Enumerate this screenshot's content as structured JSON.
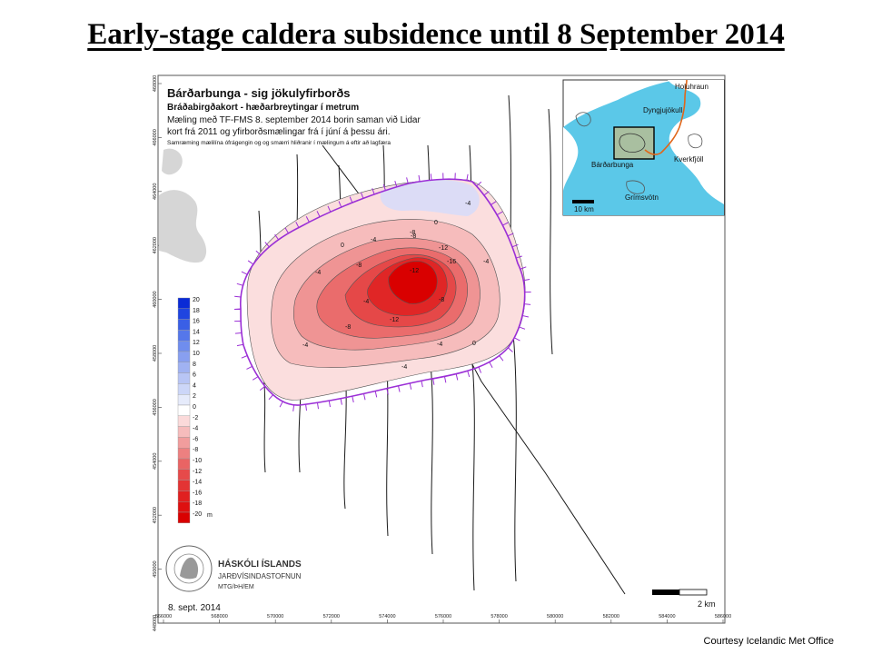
{
  "slide": {
    "title": "Early-stage caldera subsidence until 8 September 2014",
    "credit": "Courtesy Icelandic Met Office"
  },
  "map": {
    "title": "Bárðarbunga - sig jökulyfirborðs",
    "subtitle": "Bráðabirgðakort - hæðarbreytingar í metrum",
    "description_lines": [
      "Mæling með TF-FMS 8. september 2014 borin saman við Lidar",
      "kort frá 2011 og yfirborðsmælingar frá í júní á þessu ári.",
      "Samræming mælilína ófrágengin og og smærri hliðranir í mælingum á eftir að lagfæra"
    ],
    "date": "8. sept. 2014",
    "x_ticks": [
      "566000",
      "568000",
      "570000",
      "572000",
      "574000",
      "576000",
      "578000",
      "580000",
      "582000",
      "584000",
      "586000"
    ],
    "y_ticks": [
      "468000",
      "466000",
      "464000",
      "462000",
      "460000",
      "458000",
      "456000",
      "454000",
      "452000",
      "450000",
      "448000"
    ],
    "contour_labels": [
      "0",
      "-4",
      "-8",
      "-12",
      "-16",
      "-4",
      "-8",
      "-12",
      "-8",
      "-4",
      "0",
      "-4",
      "-4",
      "0",
      "-4",
      "-8",
      "-4",
      "-12",
      "-8",
      "-4"
    ],
    "colors": {
      "boundary": "#9b2fd6",
      "line": "#111111",
      "water": "#5bc8e8",
      "land": "#d9d9d9"
    }
  },
  "legend": {
    "values": [
      "20",
      "18",
      "16",
      "14",
      "12",
      "10",
      "8",
      "6",
      "4",
      "2",
      "0",
      "-2",
      "-4",
      "-6",
      "-8",
      "-10",
      "-12",
      "-14",
      "-16",
      "-18",
      "-20"
    ],
    "unit": "m",
    "colors": [
      "#0a2bd6",
      "#1f45e0",
      "#3a5fe6",
      "#5577ea",
      "#6f8dee",
      "#889ff0",
      "#a0b2f2",
      "#b8c5f5",
      "#ccd6f8",
      "#e6ebfb",
      "#ffffff",
      "#fbdada",
      "#f6bcbc",
      "#f19d9d",
      "#ed8080",
      "#e96464",
      "#e64a4a",
      "#e33434",
      "#e02020",
      "#de1010",
      "#d90000"
    ]
  },
  "institution": {
    "name": "HÁSKÓLI ÍSLANDS",
    "dept": "JARÐVÍSINDASTOFNUN",
    "authors": "MTG/ÞH/EM",
    "seal_text": "UNIVERSITATIS ISLANDIAE SIGILLUM"
  },
  "scalebar": {
    "label": "2 km"
  },
  "inset": {
    "labels": [
      "Holuhraun",
      "Dyngjujökull",
      "Bárðarbunga",
      "Kverkfjöll",
      "Grímsvötn"
    ],
    "scale_label": "10 km",
    "colors": {
      "glacier": "#5bc8e8",
      "land": "#ffffff",
      "route": "#e0661a",
      "box_fill": "#a9bfa0"
    }
  }
}
